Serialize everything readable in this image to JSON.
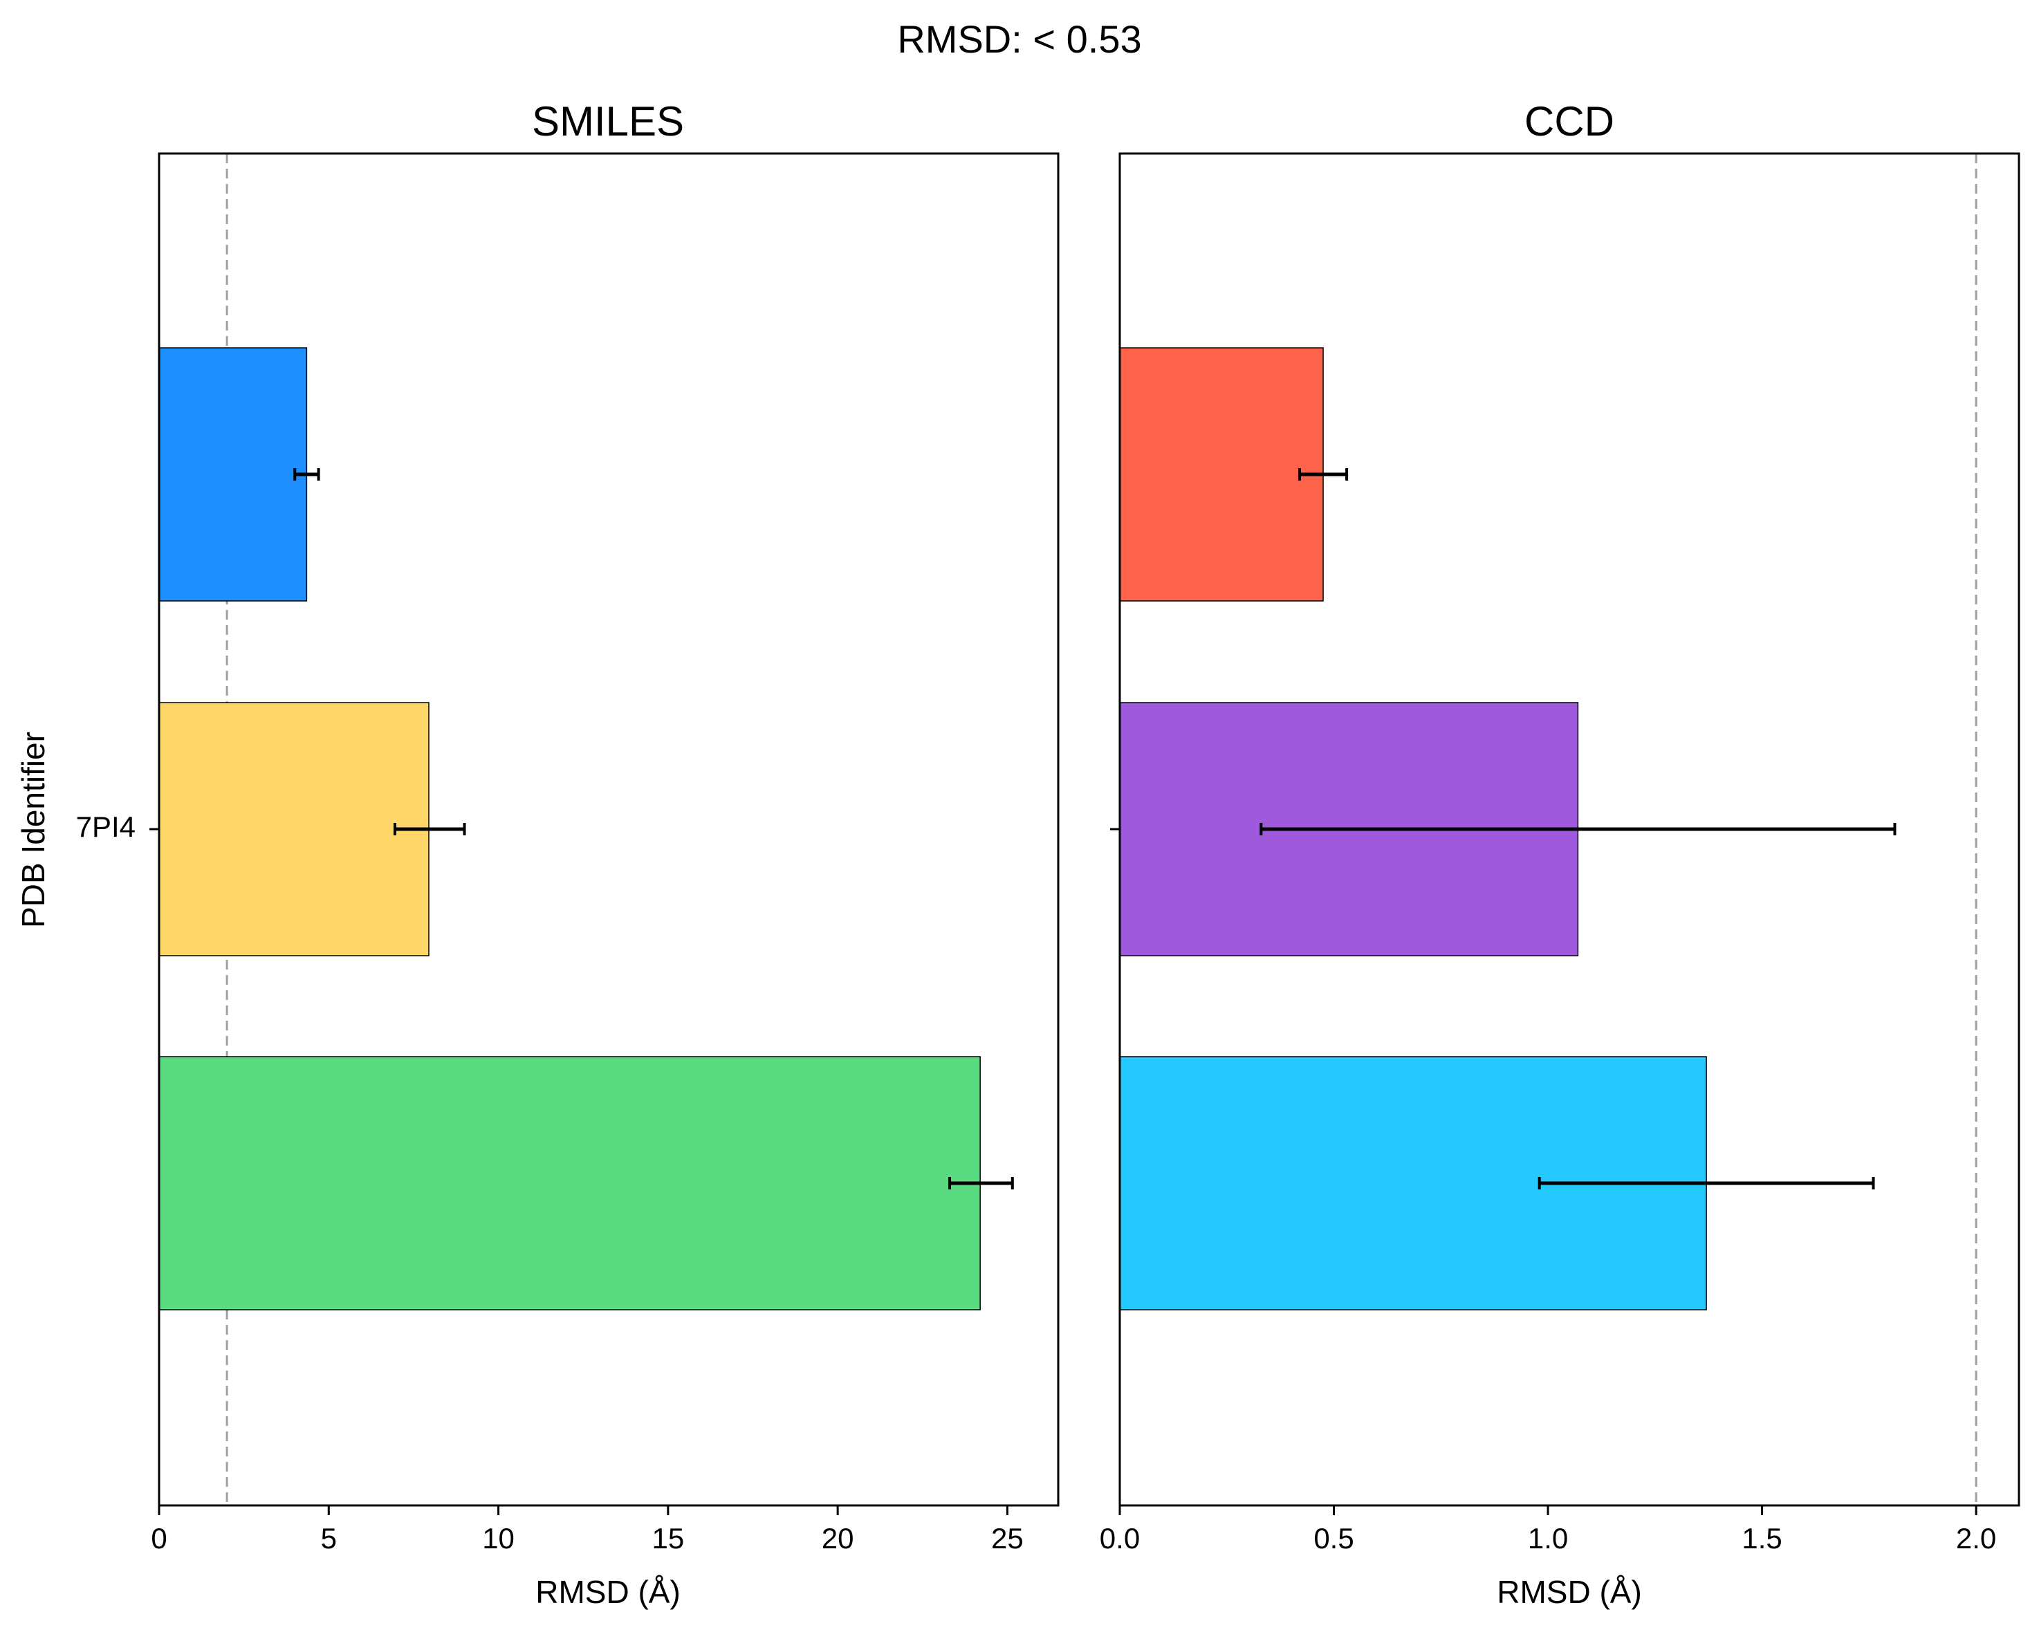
{
  "figure": {
    "suptitle": "RMSD: < 0.53"
  },
  "chart_data": [
    {
      "type": "bar",
      "orientation": "horizontal",
      "title": "SMILES",
      "xlabel": "RMSD (Å)",
      "ylabel": "PDB Identifier",
      "categories": [
        "7PI4"
      ],
      "xlim": [
        0,
        26.5
      ],
      "xticks": [
        0,
        5,
        10,
        15,
        20,
        25
      ],
      "xtick_labels": [
        "0",
        "5",
        "10",
        "15",
        "20",
        "25"
      ],
      "reference_line": 2,
      "bars": [
        {
          "value": 4.35,
          "err_low": 4.0,
          "err_high": 4.7,
          "color": "#1e8fff"
        },
        {
          "value": 7.95,
          "err_low": 6.95,
          "err_high": 9.0,
          "color": "#ffd769"
        },
        {
          "value": 24.2,
          "err_low": 23.3,
          "err_high": 25.15,
          "color": "#5adb81"
        }
      ]
    },
    {
      "type": "bar",
      "orientation": "horizontal",
      "title": "CCD",
      "xlabel": "RMSD (Å)",
      "ylabel": "",
      "categories": [],
      "xlim": [
        0,
        2.1
      ],
      "xticks": [
        0,
        0.5,
        1,
        1.5,
        2
      ],
      "xtick_labels": [
        "0.0",
        "0.5",
        "1.0",
        "1.5",
        "2.0"
      ],
      "reference_line": 2,
      "bars": [
        {
          "value": 0.475,
          "err_low": 0.42,
          "err_high": 0.53,
          "color": "#fd644b"
        },
        {
          "value": 1.07,
          "err_low": 0.33,
          "err_high": 1.81,
          "color": "#9f59dd"
        },
        {
          "value": 1.37,
          "err_low": 0.98,
          "err_high": 1.76,
          "color": "#26c9ff"
        }
      ]
    }
  ]
}
